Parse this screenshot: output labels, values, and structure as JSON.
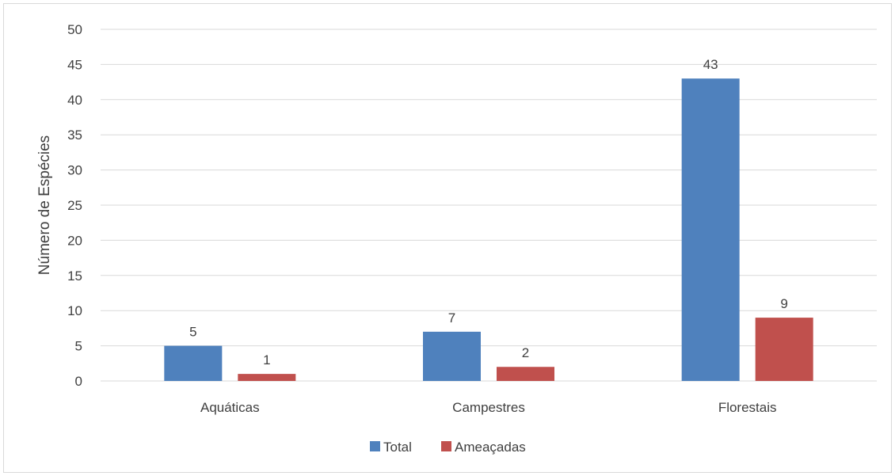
{
  "chart_data": {
    "type": "bar",
    "title": "",
    "xlabel": "",
    "ylabel": "Número de Espécies",
    "categories": [
      "Aquáticas",
      "Campestres",
      "Florestais"
    ],
    "series": [
      {
        "name": "Total",
        "values": [
          5,
          7,
          43
        ],
        "color": "#4f81bd"
      },
      {
        "name": "Ameaçadas",
        "values": [
          1,
          2,
          9
        ],
        "color": "#c0504d"
      }
    ],
    "ylim": [
      0,
      50
    ],
    "yticks": [
      0,
      5,
      10,
      15,
      20,
      25,
      30,
      35,
      40,
      45,
      50
    ],
    "grid": true,
    "legend_position": "bottom",
    "data_labels": true
  }
}
